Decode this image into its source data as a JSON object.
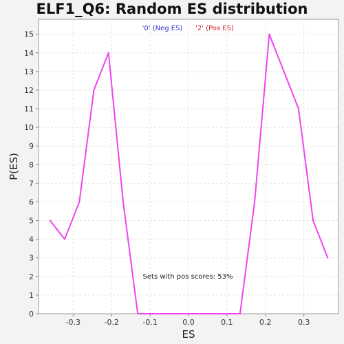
{
  "chart_data": {
    "type": "line",
    "title": "ELF1_Q6: Random ES distribution",
    "xlabel": "ES",
    "ylabel": "P(ES)",
    "xlim": [
      -0.39,
      0.39
    ],
    "ylim": [
      0,
      15.8
    ],
    "x_ticks": [
      -0.3,
      -0.2,
      -0.1,
      0.0,
      0.1,
      0.2,
      0.3
    ],
    "x_tick_labels": [
      "-0.3",
      "-0.2",
      "-0.1",
      "0.0",
      "0.1",
      "0.2",
      "0.3"
    ],
    "y_ticks": [
      0,
      1,
      2,
      3,
      4,
      5,
      6,
      7,
      8,
      9,
      10,
      11,
      12,
      13,
      14,
      15
    ],
    "grid": true,
    "legend": [
      {
        "label": "'0' (Neg ES)",
        "color": "#3333cc"
      },
      {
        "label": "'2' (Pos ES)",
        "color": "#cc2222"
      }
    ],
    "annotation": "Sets with pos scores: 53%",
    "series": [
      {
        "color": "#ee44ee",
        "x": [
          -0.36,
          -0.322,
          -0.284,
          -0.246,
          -0.208,
          -0.17,
          -0.132,
          -0.094,
          -0.056,
          -0.018,
          0.02,
          0.058,
          0.096,
          0.134,
          0.172,
          0.21,
          0.248,
          0.286,
          0.324,
          0.362
        ],
        "y": [
          5,
          4,
          6,
          12,
          14,
          6,
          0,
          0,
          0,
          0,
          0,
          0,
          0,
          0,
          6,
          15,
          13,
          11,
          5,
          3
        ]
      }
    ]
  }
}
